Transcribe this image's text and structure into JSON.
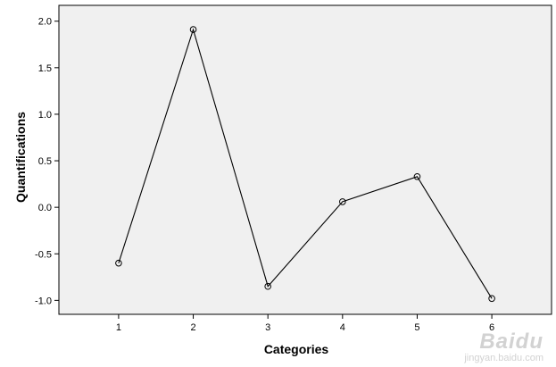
{
  "chart_data": {
    "type": "line",
    "x": [
      1,
      2,
      3,
      4,
      5,
      6
    ],
    "series": [
      {
        "values": [
          -0.6,
          1.91,
          -0.85,
          0.06,
          0.33,
          -0.98
        ]
      }
    ],
    "xticks": [
      "1",
      "2",
      "3",
      "4",
      "5",
      "6"
    ],
    "yticks": [
      "-1.0",
      "-0.5",
      "0.0",
      "0.5",
      "1.0",
      "1.5",
      "2.0"
    ],
    "xlabel": "Categories",
    "ylabel": "Quantifications",
    "xlim": [
      0.2,
      6.8
    ],
    "ylim": [
      -1.15,
      2.17
    ],
    "grid": false,
    "marker": "open-circle",
    "colors": {
      "plot_background": "#f0f0f0",
      "line": "#000000",
      "axis": "#000000"
    }
  },
  "watermark": {
    "logo": "Baidu",
    "url": "jingyan.baidu.com"
  }
}
